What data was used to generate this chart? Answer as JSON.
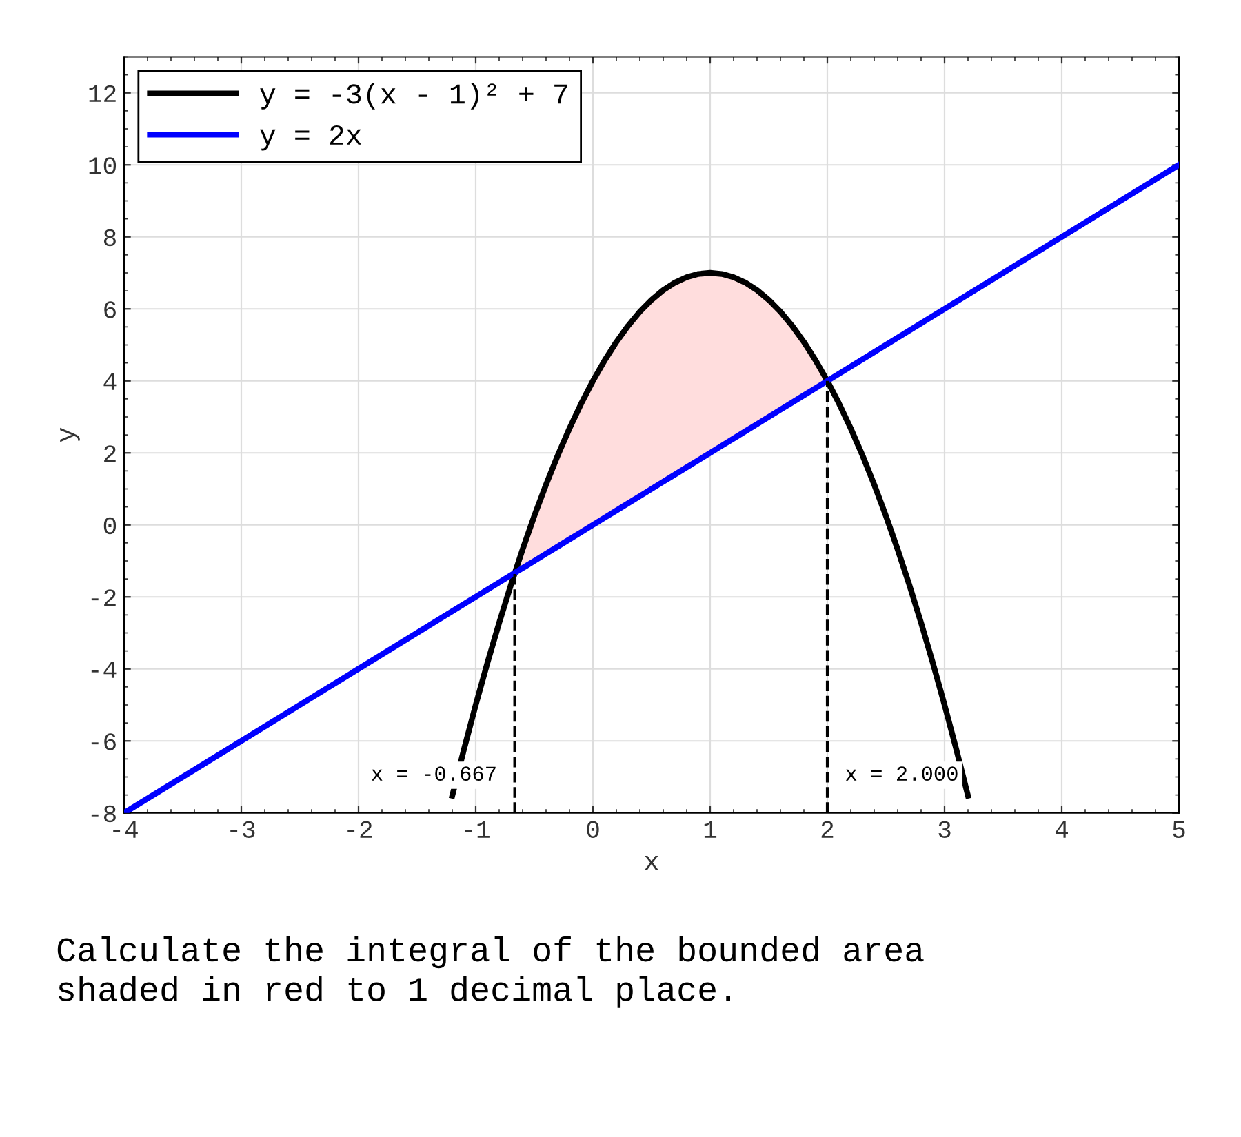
{
  "chart_data": {
    "type": "line",
    "xlabel": "x",
    "ylabel": "y",
    "xlim": [
      -4,
      5
    ],
    "xticks": [
      -4,
      -3,
      -2,
      -1,
      0,
      1,
      2,
      3,
      4,
      5
    ],
    "ylim": [
      -8,
      13
    ],
    "yticks": [
      -8,
      -6,
      -4,
      -2,
      0,
      2,
      4,
      6,
      8,
      10,
      12
    ],
    "grid": true,
    "legend": "top left",
    "line_style": "solid",
    "marker": "none",
    "series": [
      {
        "name": "y = -3(x - 1)² + 7",
        "color": "#000000",
        "type": "line",
        "x": [
          -1.2,
          -1.1,
          -1,
          -0.9,
          -0.8,
          -0.7,
          -0.6,
          -0.5,
          -0.4,
          -0.3,
          -0.2,
          -0.1,
          0,
          0.1,
          0.2,
          0.3,
          0.4,
          0.5,
          0.6,
          0.7,
          0.8,
          0.9,
          1,
          1.1,
          1.2,
          1.3,
          1.4,
          1.5,
          1.6,
          1.7,
          1.8,
          1.9,
          2,
          2.1,
          2.2,
          2.3,
          2.4,
          2.5,
          2.6,
          2.7,
          2.8,
          2.9,
          3,
          3.1,
          3.2
        ],
        "values": [
          -7.52,
          -6.23,
          -5,
          -3.83,
          -2.72,
          -1.67,
          -0.68,
          0.25,
          1.12,
          1.93,
          2.68,
          3.37,
          4,
          4.57,
          5.08,
          5.53,
          5.92,
          6.25,
          6.52,
          6.73,
          6.88,
          6.97,
          7,
          6.97,
          6.88,
          6.73,
          6.52,
          6.25,
          5.92,
          5.53,
          5.08,
          4.57,
          4,
          3.37,
          2.68,
          1.93,
          1.12,
          0.25,
          -0.68,
          -1.67,
          -2.72,
          -3.83,
          -5,
          -6.23,
          -7.52
        ]
      },
      {
        "name": "y = 2x",
        "color": "#0000ff",
        "type": "line",
        "x": [
          -4,
          -0.667,
          -0.6,
          -0.5,
          -0.4,
          -0.3,
          -0.2,
          -0.1,
          0,
          0.1,
          0.2,
          0.3,
          0.4,
          0.5,
          0.6,
          0.7,
          0.8,
          0.9,
          1,
          1.1,
          1.2,
          1.3,
          1.4,
          1.5,
          1.6,
          1.7,
          1.8,
          1.9,
          2,
          5
        ],
        "values": [
          -8,
          -1.33,
          -1.2,
          -1,
          -0.8,
          -0.6,
          -0.4,
          -0.2,
          0,
          0.2,
          0.4,
          0.6,
          0.8,
          1,
          1.2,
          1.4,
          1.6,
          1.8,
          2,
          2.2,
          2.4,
          2.6,
          2.8,
          3,
          3.2,
          3.4,
          3.6,
          3.8,
          4,
          10
        ],
        "lower": [
          null,
          -1.33,
          -1.2,
          -1,
          -0.8,
          -0.6,
          -0.4,
          -0.2,
          0,
          0.2,
          0.4,
          0.6,
          0.8,
          1,
          1.2,
          1.4,
          1.6,
          1.8,
          2,
          2.2,
          2.4,
          2.6,
          2.8,
          3,
          3.2,
          3.4,
          3.6,
          3.8,
          4,
          null
        ],
        "upper": [
          null,
          -1.33,
          -0.68,
          0.25,
          1.12,
          1.93,
          2.68,
          3.37,
          4,
          4.57,
          5.08,
          5.53,
          5.92,
          6.25,
          6.52,
          6.73,
          6.88,
          6.97,
          7,
          6.97,
          6.88,
          6.73,
          6.52,
          6.25,
          5.92,
          5.53,
          5.08,
          4.57,
          4,
          null
        ]
      }
    ],
    "ref_lines": [
      {
        "axis": "x",
        "value": -0.667,
        "label": "x = -0.667",
        "line_style": "dashed",
        "color": "#000000"
      },
      {
        "axis": "x",
        "value": 2.0,
        "label": "x = 2.000",
        "line_style": "dashed",
        "color": "#000000"
      }
    ],
    "annotations": [
      "Calculate the integral of the bounded area\nshaded in red to 1 decimal place."
    ]
  }
}
